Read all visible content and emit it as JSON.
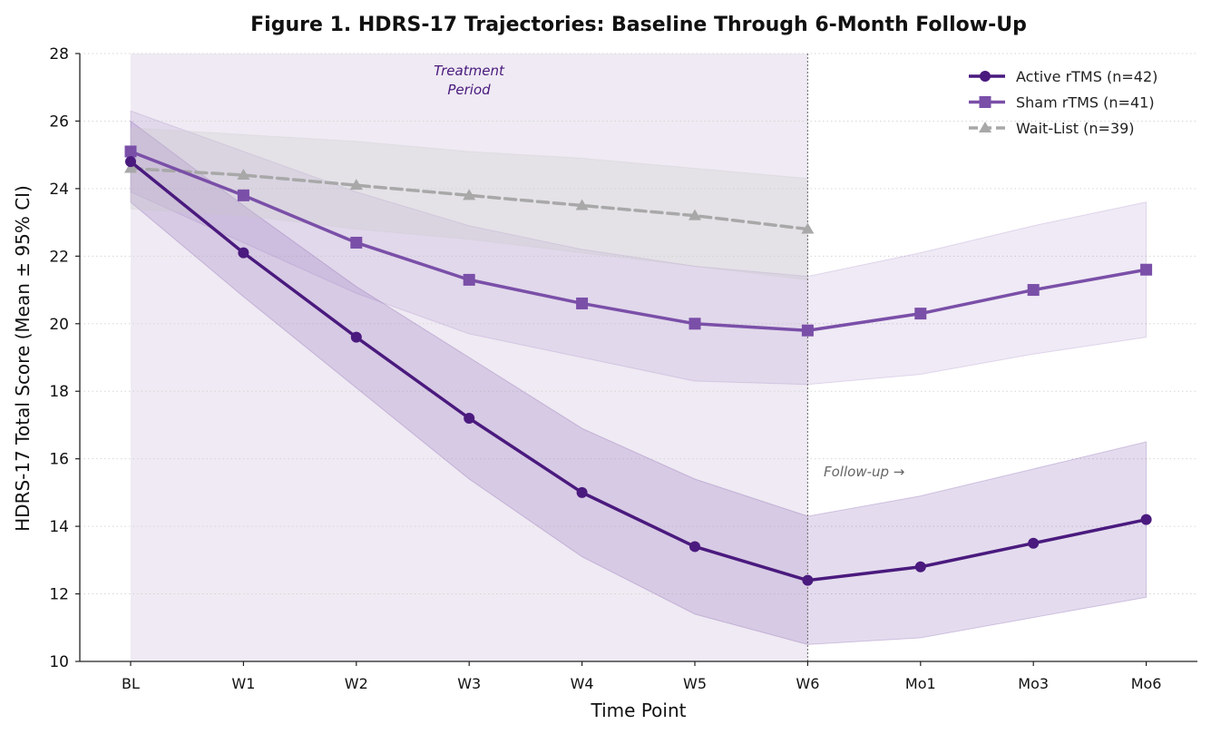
{
  "chart_data": {
    "type": "line",
    "title": "Figure 1. HDRS-17 Trajectories: Baseline Through 6-Month Follow-Up",
    "xlabel": "Time Point",
    "ylabel": "HDRS-17 Total Score (Mean ± 95% CI)",
    "categories": [
      "BL",
      "W1",
      "W2",
      "W3",
      "W4",
      "W5",
      "W6",
      "Mo1",
      "Mo3",
      "Mo6"
    ],
    "ylim": [
      10,
      28
    ],
    "yticks": [
      10,
      12,
      14,
      16,
      18,
      20,
      22,
      24,
      26,
      28
    ],
    "grid": "horizontal dotted",
    "legend_position": "top-right",
    "series": [
      {
        "name": "Active rTMS (n=42)",
        "color": "#4a1a7e",
        "marker": "circle",
        "linestyle": "solid",
        "values": [
          24.8,
          22.1,
          19.6,
          17.2,
          15.0,
          13.4,
          12.4,
          12.8,
          13.5,
          14.2
        ],
        "ci_lower": [
          23.6,
          20.8,
          18.1,
          15.4,
          13.1,
          11.4,
          10.5,
          10.7,
          11.3,
          11.9
        ],
        "ci_upper": [
          26.0,
          23.5,
          21.1,
          19.0,
          16.9,
          15.4,
          14.3,
          14.9,
          15.7,
          16.5
        ]
      },
      {
        "name": "Sham rTMS (n=41)",
        "color": "#7a4fa8",
        "marker": "square",
        "linestyle": "solid",
        "values": [
          25.1,
          23.8,
          22.4,
          21.3,
          20.6,
          20.0,
          19.8,
          20.3,
          21.0,
          21.6
        ],
        "ci_lower": [
          23.9,
          22.4,
          20.9,
          19.7,
          19.0,
          18.3,
          18.2,
          18.5,
          19.1,
          19.6
        ],
        "ci_upper": [
          26.3,
          25.1,
          23.9,
          22.9,
          22.2,
          21.7,
          21.4,
          22.1,
          22.9,
          23.6
        ]
      },
      {
        "name": "Wait-List (n=39)",
        "color": "#a8a8a8",
        "marker": "triangle",
        "linestyle": "dashed",
        "values": [
          24.6,
          24.4,
          24.1,
          23.8,
          23.5,
          23.2,
          22.8,
          null,
          null,
          null
        ],
        "ci_lower": [
          23.4,
          23.2,
          22.8,
          22.5,
          22.1,
          21.7,
          21.3,
          null,
          null,
          null
        ],
        "ci_upper": [
          25.8,
          25.6,
          25.4,
          25.1,
          24.9,
          24.6,
          24.3,
          null,
          null,
          null
        ]
      }
    ],
    "annotations": [
      {
        "text_lines": [
          "Treatment",
          "Period"
        ],
        "color": "#4a1a7e"
      },
      {
        "text": "Follow-up →",
        "color": "#666666"
      }
    ],
    "shaded_region": {
      "from": "BL",
      "to": "W6",
      "color": "#efeaf3"
    },
    "divider_at": "W6"
  }
}
